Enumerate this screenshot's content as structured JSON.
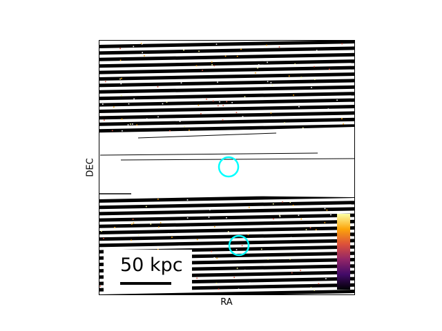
{
  "axes": {
    "xlabel": "RA",
    "ylabel": "DEC",
    "ticks": false
  },
  "image": {
    "description_colormap": "inferno",
    "background": "#ffffff",
    "stripe_color": "#000000"
  },
  "scalebar": {
    "label": "50 kpc",
    "color": "#000000"
  },
  "markers": [
    {
      "name": "upper-circle",
      "color": "#00ffff"
    },
    {
      "name": "lower-circle",
      "color": "#00ffff"
    }
  ],
  "colorbar": {
    "colormap": "inferno",
    "stops": [
      "#000004",
      "#420a68",
      "#932667",
      "#dd513a",
      "#fca50a",
      "#fcffa4"
    ]
  }
}
